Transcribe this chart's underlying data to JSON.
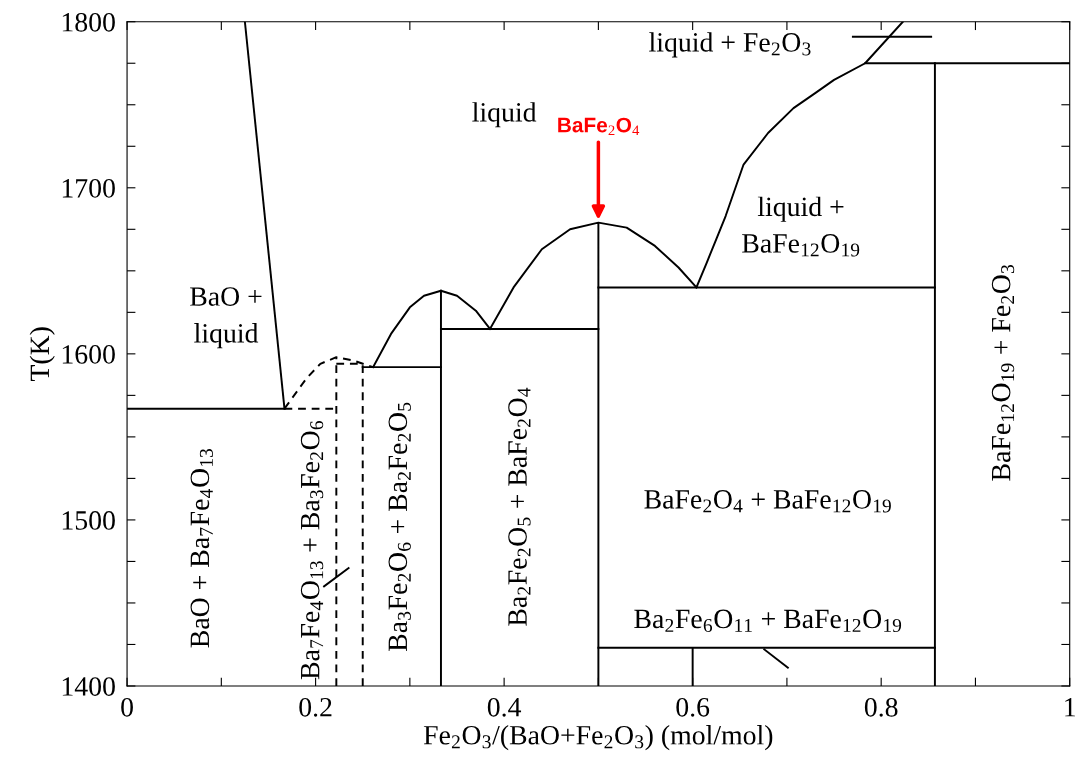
{
  "chart_data": {
    "type": "line",
    "xlabel": "Fe$_{2}$O$_{3}$/(BaO+Fe$_{2}$O$_{3}$) (mol/mol)",
    "ylabel": "T(K)",
    "xlim": [
      0,
      1
    ],
    "ylim": [
      1400,
      1800
    ],
    "xticks": [
      0,
      {
        "value": 0.1,
        "label": null
      },
      0.2,
      {
        "value": 0.3,
        "label": null
      },
      0.4,
      {
        "value": 0.5,
        "label": null
      },
      0.6,
      {
        "value": 0.7,
        "label": null
      },
      0.8,
      {
        "value": 0.9,
        "label": null
      },
      1
    ],
    "yticks": [
      1400,
      {
        "value": 1425,
        "label": null
      },
      {
        "value": 1450,
        "label": null
      },
      {
        "value": 1475,
        "label": null
      },
      1500,
      {
        "value": 1525,
        "label": null
      },
      {
        "value": 1550,
        "label": null
      },
      {
        "value": 1575,
        "label": null
      },
      1600,
      {
        "value": 1625,
        "label": null
      },
      {
        "value": 1650,
        "label": null
      },
      {
        "value": 1675,
        "label": null
      },
      1700,
      {
        "value": 1725,
        "label": null
      },
      {
        "value": 1750,
        "label": null
      },
      {
        "value": 1775,
        "label": null
      },
      1800
    ],
    "grid": false,
    "legend": false,
    "marker": "none",
    "series": [
      {
        "color": "#000000",
        "x": [
          0.125,
          0.167
        ],
        "values": [
          1800,
          1567
        ]
      },
      {
        "color": "#000000",
        "x": [
          0,
          0.167
        ],
        "values": [
          1567,
          1567
        ]
      },
      {
        "color": "#000000",
        "line_style": "dashed",
        "x": [
          0.167,
          0.222
        ],
        "values": [
          1567,
          1567
        ]
      },
      {
        "color": "#000000",
        "line_style": "dashed",
        "x": [
          0.167,
          0.19,
          0.205,
          0.222,
          0.24,
          0.261
        ],
        "values": [
          1567,
          1585,
          1594,
          1598,
          1596,
          1592
        ]
      },
      {
        "color": "#000000",
        "line_style": "dashed",
        "x": [
          0.222,
          0.222
        ],
        "values": [
          1400,
          1598
        ]
      },
      {
        "color": "#000000",
        "line_style": "dashed",
        "x": [
          0.25,
          0.25
        ],
        "values": [
          1400,
          1594
        ]
      },
      {
        "color": "#000000",
        "line_style": "dashed",
        "x": [
          0.222,
          0.25
        ],
        "values": [
          1594,
          1594
        ]
      },
      {
        "color": "#000000",
        "x": [
          0.25,
          0.333
        ],
        "values": [
          1592,
          1592
        ]
      },
      {
        "color": "#000000",
        "x": [
          0.261,
          0.28,
          0.3,
          0.315,
          0.333,
          0.35,
          0.37,
          0.385
        ],
        "values": [
          1592,
          1612,
          1628,
          1635,
          1638,
          1635,
          1626,
          1615
        ]
      },
      {
        "color": "#000000",
        "x": [
          0.333,
          0.333
        ],
        "values": [
          1400,
          1638
        ]
      },
      {
        "color": "#000000",
        "x": [
          0.333,
          0.5
        ],
        "values": [
          1615,
          1615
        ]
      },
      {
        "color": "#000000",
        "x": [
          0.385,
          0.41,
          0.44,
          0.47,
          0.5,
          0.5,
          0.5,
          0.53,
          0.56,
          0.585,
          0.604
        ],
        "values": [
          1615,
          1640,
          1663,
          1675,
          1679,
          1400,
          1679,
          1676,
          1665,
          1652,
          1640
        ]
      },
      {
        "color": "#000000",
        "x": [
          0.5,
          0.857
        ],
        "values": [
          1640,
          1640
        ]
      },
      {
        "color": "#000000",
        "x": [
          0.604,
          0.615,
          0.625,
          0.635,
          0.654,
          0.68,
          0.707,
          0.73,
          0.75,
          0.783,
          0.823
        ],
        "values": [
          1640,
          1655,
          1669,
          1683,
          1714,
          1733,
          1748,
          1757,
          1765,
          1775,
          1800
        ]
      },
      {
        "color": "#000000",
        "x": [
          0.783,
          1
        ],
        "values": [
          1775,
          1775
        ]
      },
      {
        "color": "#000000",
        "x": [
          0.857,
          0.857
        ],
        "values": [
          1400,
          1775
        ]
      },
      {
        "color": "#000000",
        "x": [
          0.5,
          0.6,
          0.6,
          0.6,
          0.857
        ],
        "values": [
          1423,
          1423,
          1400,
          1423,
          1423
        ]
      },
      {
        "color": "#000000",
        "x": [
          0.77,
          0.853
        ],
        "values": [
          1791,
          1791
        ]
      },
      {
        "color": "#000000",
        "x": [
          0.209,
          0.235
        ],
        "values": [
          1460,
          1471
        ]
      },
      {
        "color": "#000000",
        "x": [
          0.676,
          0.701
        ],
        "values": [
          1422,
          1411
        ]
      }
    ],
    "annotations": [
      "liquid",
      "liquid + Fe$_{2}$O$_{3}$",
      "liquid +\nBaFe$_{12}$O$_{19}$",
      "BaO +\nliquid",
      {
        "text": "BaFe$_{2}$O$_{4}$",
        "x": 0.5,
        "y": 1679
      },
      "BaO + Ba$_{7}$Fe$_{4}$O$_{13}$",
      "Ba$_{7}$Fe$_{4}$O$_{13}$ + Ba$_{3}$Fe$_{2}$O$_{6}$",
      "Ba$_{3}$Fe$_{2}$O$_{6}$ + Ba$_{2}$Fe$_{2}$O$_{5}$",
      "Ba$_{2}$Fe$_{2}$O$_{5}$ + BaFe$_{2}$O$_{4}$",
      "BaFe$_{2}$O$_{4}$ + BaFe$_{12}$O$_{19}$",
      "Ba$_{2}$Fe$_{6}$O$_{11}$ + BaFe$_{12}$O$_{19}$",
      "BaFe$_{12}$O$_{19}$ + Fe$_{2}$O$_{3}$"
    ]
  }
}
